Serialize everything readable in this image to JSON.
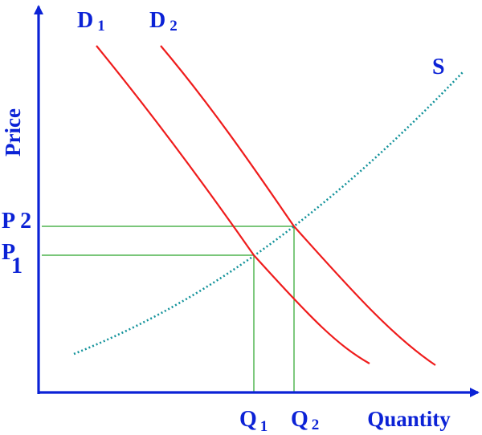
{
  "colors": {
    "axis": "#0b22d6",
    "label": "#0b22d6",
    "demand": "#ef1c1c",
    "supply": "#14939b",
    "guides": "#2aa52a",
    "background": "#ffffff"
  },
  "axes": {
    "y_label": "Price",
    "x_label": "Quantity"
  },
  "curves": {
    "d1": {
      "letter": "D",
      "sub": "1"
    },
    "d2": {
      "letter": "D",
      "sub": "2"
    },
    "s": {
      "letter": "S"
    }
  },
  "equilibrium": {
    "p1": {
      "letter": "P",
      "sub": "1"
    },
    "p2": {
      "letter": "P",
      "sub": "2"
    },
    "q1": {
      "letter": "Q",
      "sub": "1"
    },
    "q2": {
      "letter": "Q",
      "sub": "2"
    }
  }
}
